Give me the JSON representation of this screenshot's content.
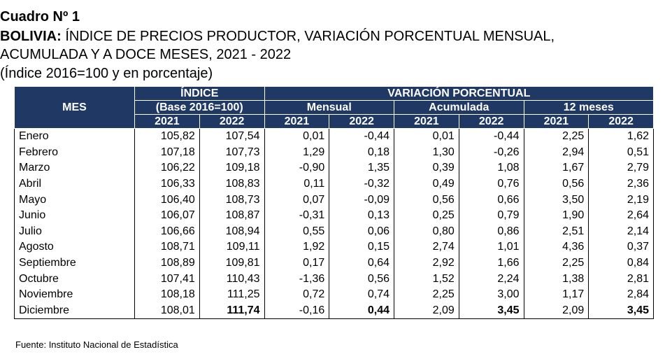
{
  "title": "Cuadro Nº 1",
  "subtitle_bold": "BOLIVIA:",
  "subtitle_rest": " ÍNDICE DE PRECIOS PRODUCTOR, VARIACIÓN PORCENTUAL MENSUAL,",
  "subtitle_line2": "ACUMULADA Y A DOCE MESES, 2021 - 2022",
  "subtitle_line3": "(Índice 2016=100 y en porcentaje)",
  "headers": {
    "mes": "MES",
    "indice": "ÍNDICE",
    "base": "(Base 2016=100)",
    "variacion": "VARIACIÓN PORCENTUAL",
    "mensual": "Mensual",
    "acumulada": "Acumulada",
    "doce": "12 meses",
    "y2021": "2021",
    "y2022": "2022"
  },
  "rows": [
    {
      "mes": "Enero",
      "v": [
        "105,82",
        "107,54",
        "0,01",
        "-0,44",
        "0,01",
        "-0,44",
        "2,25",
        "1,62"
      ]
    },
    {
      "mes": "Febrero",
      "v": [
        "107,18",
        "107,73",
        "1,29",
        "0,18",
        "1,30",
        "-0,26",
        "2,94",
        "0,51"
      ]
    },
    {
      "mes": "Marzo",
      "v": [
        "106,22",
        "109,18",
        "-0,90",
        "1,35",
        "0,39",
        "1,08",
        "1,67",
        "2,79"
      ]
    },
    {
      "mes": "Abril",
      "v": [
        "106,33",
        "108,83",
        "0,11",
        "-0,32",
        "0,49",
        "0,76",
        "0,56",
        "2,36"
      ]
    },
    {
      "mes": "Mayo",
      "v": [
        "106,40",
        "108,73",
        "0,07",
        "-0,09",
        "0,56",
        "0,66",
        "3,50",
        "2,19"
      ]
    },
    {
      "mes": "Junio",
      "v": [
        "106,07",
        "108,87",
        "-0,31",
        "0,13",
        "0,25",
        "0,79",
        "1,90",
        "2,64"
      ]
    },
    {
      "mes": "Julio",
      "v": [
        "106,66",
        "108,94",
        "0,55",
        "0,06",
        "0,80",
        "0,86",
        "2,51",
        "2,14"
      ]
    },
    {
      "mes": "Agosto",
      "v": [
        "108,71",
        "109,11",
        "1,92",
        "0,15",
        "2,74",
        "1,01",
        "4,36",
        "0,37"
      ]
    },
    {
      "mes": "Septiembre",
      "v": [
        "108,89",
        "109,81",
        "0,17",
        "0,64",
        "2,92",
        "1,66",
        "2,25",
        "0,84"
      ]
    },
    {
      "mes": "Octubre",
      "v": [
        "107,41",
        "110,43",
        "-1,36",
        "0,56",
        "1,52",
        "2,24",
        "1,38",
        "2,81"
      ]
    },
    {
      "mes": "Noviembre",
      "v": [
        "108,18",
        "111,25",
        "0,72",
        "0,74",
        "2,25",
        "3,00",
        "1,17",
        "2,84"
      ]
    },
    {
      "mes": "Diciembre",
      "v": [
        "108,01",
        "111,74",
        "-0,16",
        "0,44",
        "2,09",
        "3,45",
        "2,09",
        "3,45"
      ]
    }
  ],
  "source": "Fuente: Instituto Nacional de Estadística"
}
